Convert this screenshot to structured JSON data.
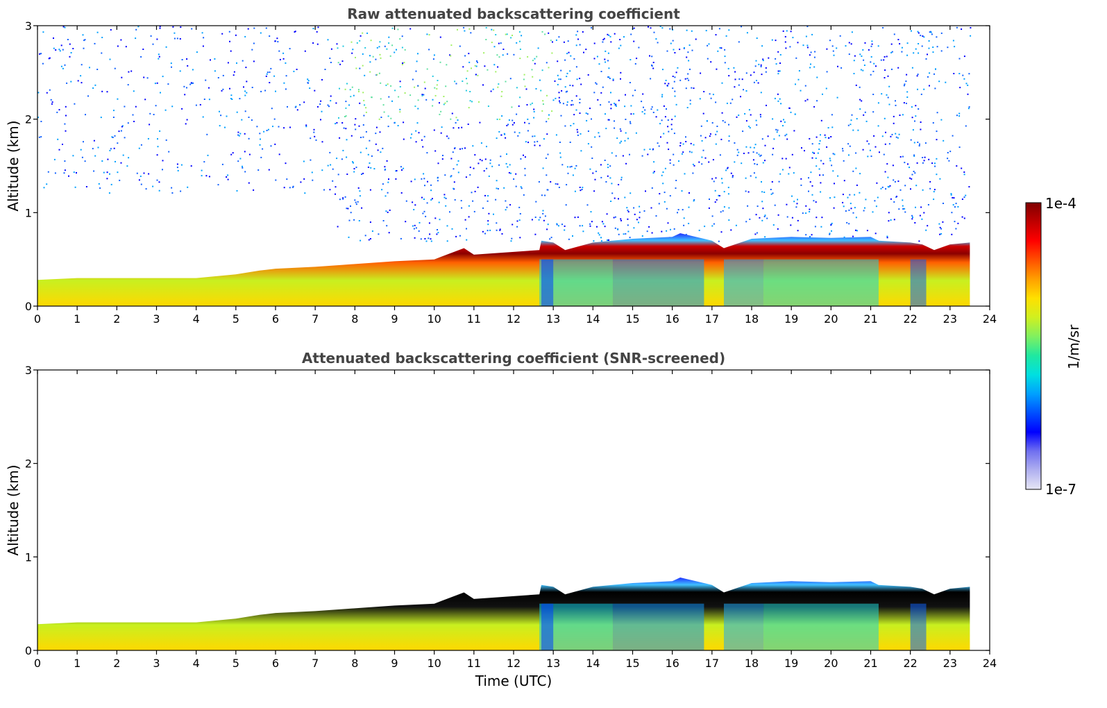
{
  "chart_data": [
    {
      "type": "heatmap",
      "title": "Raw attenuated backscattering coefficient",
      "xlabel": "",
      "ylabel": "Altitude (km)",
      "xlim": [
        0,
        24
      ],
      "ylim": [
        0,
        3
      ],
      "xticks": [
        "0",
        "1",
        "2",
        "3",
        "4",
        "5",
        "6",
        "7",
        "8",
        "9",
        "10",
        "11",
        "12",
        "13",
        "14",
        "15",
        "16",
        "17",
        "18",
        "19",
        "20",
        "21",
        "22",
        "23",
        "24"
      ],
      "yticks": [
        "0",
        "1",
        "2",
        "3"
      ],
      "data_end_time": 23.5,
      "boundary_layer_top_km": [
        {
          "t": 0,
          "z": 0.28
        },
        {
          "t": 1,
          "z": 0.3
        },
        {
          "t": 2,
          "z": 0.3
        },
        {
          "t": 3,
          "z": 0.3
        },
        {
          "t": 4,
          "z": 0.3
        },
        {
          "t": 5,
          "z": 0.34
        },
        {
          "t": 5.6,
          "z": 0.38
        },
        {
          "t": 6,
          "z": 0.4
        },
        {
          "t": 7,
          "z": 0.42
        },
        {
          "t": 8,
          "z": 0.45
        },
        {
          "t": 9,
          "z": 0.48
        },
        {
          "t": 10,
          "z": 0.5
        },
        {
          "t": 10.75,
          "z": 0.62
        },
        {
          "t": 11,
          "z": 0.55
        },
        {
          "t": 12,
          "z": 0.58
        },
        {
          "t": 12.65,
          "z": 0.6
        },
        {
          "t": 12.7,
          "z": 0.7
        },
        {
          "t": 13,
          "z": 0.68
        },
        {
          "t": 13.3,
          "z": 0.6
        },
        {
          "t": 14,
          "z": 0.68
        },
        {
          "t": 15,
          "z": 0.72
        },
        {
          "t": 16,
          "z": 0.74
        },
        {
          "t": 16.2,
          "z": 0.78
        },
        {
          "t": 17,
          "z": 0.7
        },
        {
          "t": 17.3,
          "z": 0.62
        },
        {
          "t": 18,
          "z": 0.72
        },
        {
          "t": 19,
          "z": 0.74
        },
        {
          "t": 20,
          "z": 0.73
        },
        {
          "t": 21,
          "z": 0.74
        },
        {
          "t": 21.2,
          "z": 0.7
        },
        {
          "t": 22,
          "z": 0.68
        },
        {
          "t": 22.3,
          "z": 0.66
        },
        {
          "t": 22.6,
          "z": 0.6
        },
        {
          "t": 23,
          "z": 0.66
        },
        {
          "t": 23.5,
          "z": 0.68
        }
      ]
    },
    {
      "type": "heatmap",
      "title": "Attenuated backscattering coefficient (SNR-screened)",
      "xlabel": "Time (UTC)",
      "ylabel": "Altitude (km)",
      "xlim": [
        0,
        24
      ],
      "ylim": [
        0,
        3
      ],
      "xticks": [
        "0",
        "1",
        "2",
        "3",
        "4",
        "5",
        "6",
        "7",
        "8",
        "9",
        "10",
        "11",
        "12",
        "13",
        "14",
        "15",
        "16",
        "17",
        "18",
        "19",
        "20",
        "21",
        "22",
        "23",
        "24"
      ],
      "yticks": [
        "0",
        "1",
        "2",
        "3"
      ],
      "data_end_time": 23.5
    }
  ],
  "colorbar": {
    "min_label": "1e-7",
    "max_label": "1e-4",
    "units_label": "1/m/sr",
    "colors": [
      "#e6e6f5",
      "#b0b0f0",
      "#7070f0",
      "#0000ff",
      "#0050ff",
      "#00a0ff",
      "#00e0e0",
      "#20e8a0",
      "#80f060",
      "#d0f020",
      "#ffe000",
      "#ffa000",
      "#ff5000",
      "#ff0000",
      "#c00000",
      "#800000"
    ]
  }
}
